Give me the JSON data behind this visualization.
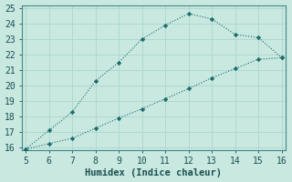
{
  "xlabel": "Humidex (Indice chaleur)",
  "bg_color": "#c8e8e0",
  "grid_color": "#b0d8d0",
  "line_color": "#1a6b6b",
  "xlim": [
    5,
    16
  ],
  "ylim": [
    16,
    25
  ],
  "xticks": [
    5,
    6,
    7,
    8,
    9,
    10,
    11,
    12,
    13,
    14,
    15,
    16
  ],
  "yticks": [
    16,
    17,
    18,
    19,
    20,
    21,
    22,
    23,
    24,
    25
  ],
  "line1_x": [
    5,
    6,
    7,
    8,
    9,
    10,
    11,
    12,
    13,
    14,
    15,
    16
  ],
  "line1_y": [
    15.9,
    17.1,
    18.3,
    20.3,
    21.5,
    23.0,
    23.9,
    24.65,
    24.3,
    23.3,
    23.1,
    21.8
  ],
  "line2_x": [
    5,
    6,
    7,
    8,
    9,
    10,
    11,
    12,
    13,
    14,
    15,
    16
  ],
  "line2_y": [
    15.9,
    16.25,
    16.6,
    17.25,
    17.9,
    18.5,
    19.15,
    19.8,
    20.5,
    21.1,
    21.7,
    21.8
  ],
  "tick_fontsize": 7,
  "xlabel_fontsize": 7.5,
  "spine_color": "#448888"
}
